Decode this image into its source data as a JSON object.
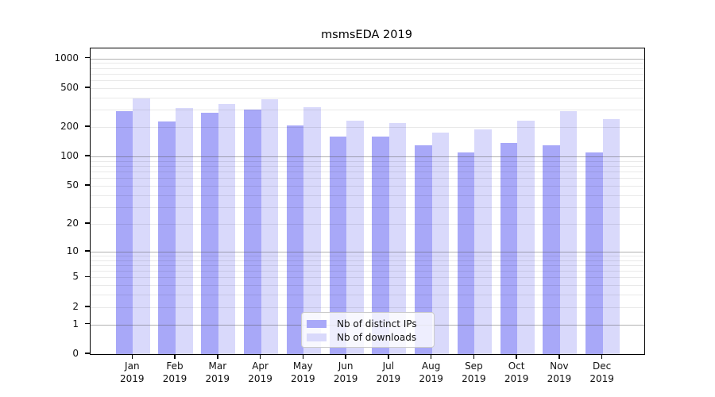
{
  "chart_data": {
    "type": "bar",
    "title": "msmsEDA 2019",
    "xlabel": "",
    "ylabel": "",
    "categories": [
      "Jan",
      "Feb",
      "Mar",
      "Apr",
      "May",
      "Jun",
      "Jul",
      "Aug",
      "Sep",
      "Oct",
      "Nov",
      "Dec"
    ],
    "year": "2019",
    "series": [
      {
        "name": "Nb of distinct IPs",
        "color": "#a8a8f8",
        "values": [
          290,
          228,
          283,
          301,
          210,
          160,
          160,
          130,
          110,
          137,
          130,
          110
        ]
      },
      {
        "name": "Nb of downloads",
        "color": "#d9d9fb",
        "values": [
          391,
          311,
          345,
          386,
          319,
          234,
          220,
          176,
          190,
          231,
          291,
          242
        ]
      }
    ],
    "y_ticks": [
      0,
      1,
      2,
      5,
      10,
      20,
      50,
      100,
      200,
      500,
      1000
    ],
    "y_scale": "log1p",
    "ylim": [
      0,
      1265
    ],
    "grid": "horizontal minor + major decade lines, drawn over bars",
    "legend_position": "inside lower center"
  }
}
